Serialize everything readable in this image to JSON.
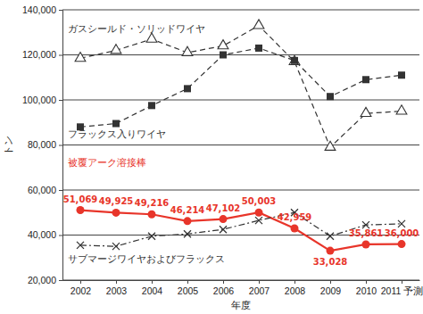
{
  "chart_data": {
    "type": "line",
    "x_label": "年度",
    "y_label": "トン",
    "categories": [
      "2002",
      "2003",
      "2004",
      "2005",
      "2006",
      "2007",
      "2008",
      "2009",
      "2010",
      "2011 予測"
    ],
    "ylim": [
      20000,
      140000
    ],
    "yticks": [
      {
        "value": 20000,
        "label": "20,000"
      },
      {
        "value": 40000,
        "label": "40,000"
      },
      {
        "value": 60000,
        "label": "60,000"
      },
      {
        "value": 80000,
        "label": "80,000"
      },
      {
        "value": 100000,
        "label": "100,000"
      },
      {
        "value": 120000,
        "label": "120,000"
      },
      {
        "value": 140000,
        "label": "140,000"
      }
    ],
    "grid": true,
    "series": [
      {
        "name": "ガスシールド・ソリッドワイヤ",
        "color": "#333333",
        "marker": "triangle-open",
        "line_style": "dashed",
        "values": [
          118500,
          122000,
          127000,
          121000,
          124000,
          133000,
          117000,
          79000,
          94000,
          95000
        ]
      },
      {
        "name": "フラックス入りワイヤ",
        "color": "#333333",
        "marker": "square",
        "line_style": "dashed",
        "values": [
          88000,
          89500,
          97500,
          105000,
          120000,
          123000,
          117500,
          101500,
          109000,
          111000
        ]
      },
      {
        "name": "被覆アーク溶接棒",
        "color": "#e8352a",
        "marker": "circle",
        "line_style": "solid",
        "data_labels": true,
        "values": [
          51069,
          49925,
          49216,
          46214,
          47102,
          50003,
          42959,
          33028,
          35861,
          36000
        ],
        "value_labels": [
          "51,069",
          "49,925",
          "49,216",
          "46,214",
          "47,102",
          "50,003",
          "42,959",
          "33,028",
          "35,861",
          "36,000"
        ]
      },
      {
        "name": "サブマージワイヤおよびフラックス",
        "color": "#333333",
        "marker": "x",
        "line_style": "dashdot",
        "values": [
          35500,
          35000,
          39500,
          40500,
          42500,
          46500,
          50000,
          39500,
          44500,
          45000
        ]
      }
    ]
  }
}
